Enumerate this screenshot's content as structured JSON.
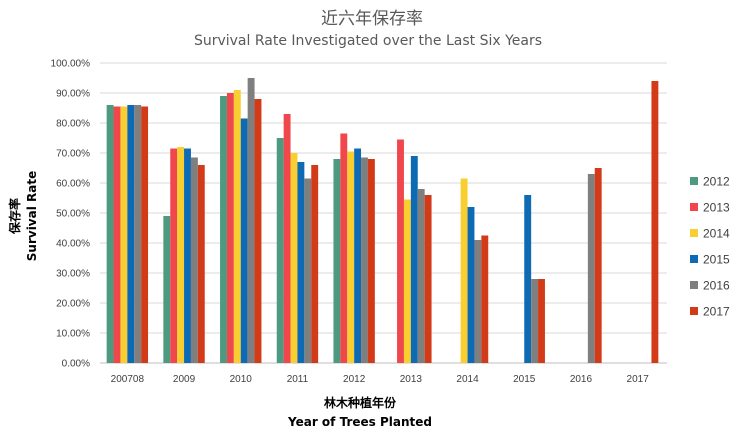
{
  "chart_data": {
    "type": "bar",
    "title": "近六年保存率",
    "subtitle": "Survival Rate Investigated over the Last Six Years",
    "xlabel": "林木种植年份",
    "xlabel_en": "Year of Trees Planted",
    "ylabel": "保存率",
    "ylabel_en": "Survival Rate",
    "categories": [
      "200708",
      "2009",
      "2010",
      "2011",
      "2012",
      "2013",
      "2014",
      "2015",
      "2016",
      "2017"
    ],
    "ylim": [
      0,
      100
    ],
    "yticks": [
      "0.00%",
      "10.00%",
      "20.00%",
      "30.00%",
      "40.00%",
      "50.00%",
      "60.00%",
      "70.00%",
      "80.00%",
      "90.00%",
      "100.00%"
    ],
    "grid": true,
    "legend": "right",
    "series": [
      {
        "name": "2012",
        "color": "#4e9a80",
        "values": [
          86,
          49,
          89,
          75,
          68,
          null,
          null,
          null,
          null,
          null
        ]
      },
      {
        "name": "2013",
        "color": "#f0474d",
        "values": [
          85.5,
          71.5,
          90,
          83,
          76.5,
          74.5,
          null,
          null,
          null,
          null
        ]
      },
      {
        "name": "2014",
        "color": "#f9ce30",
        "values": [
          85.5,
          72,
          91,
          70,
          70.5,
          54.5,
          61.5,
          null,
          null,
          null
        ]
      },
      {
        "name": "2015",
        "color": "#0f6ab4",
        "values": [
          86,
          71.5,
          81.5,
          67,
          71.5,
          69,
          52,
          56,
          null,
          null
        ]
      },
      {
        "name": "2016",
        "color": "#7f7f7f",
        "values": [
          86,
          68.5,
          95,
          61.5,
          68.5,
          58,
          41,
          28,
          63,
          null
        ]
      },
      {
        "name": "2017",
        "color": "#d33a17",
        "values": [
          85.5,
          66,
          88,
          66,
          68,
          56,
          42.5,
          28,
          65,
          94
        ]
      }
    ]
  }
}
